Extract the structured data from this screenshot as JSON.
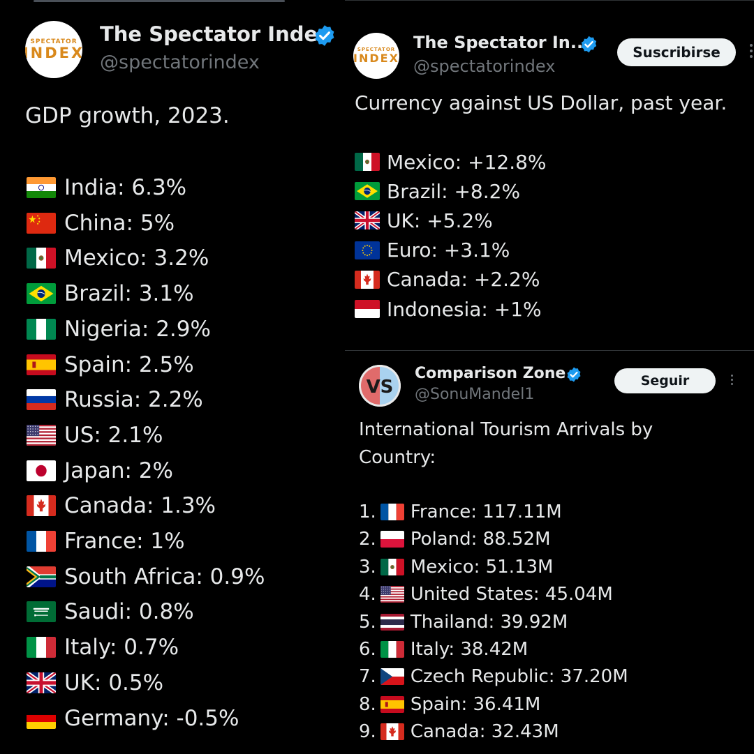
{
  "colors": {
    "background": "#000000",
    "text": "#e7e9ea",
    "muted": "#71767b",
    "verified": "#1d9bf0",
    "button_bg": "#eff3f4"
  },
  "left_post": {
    "author_name": "The Spectator Index",
    "author_handle": "@spectatorindex",
    "avatar_line1": "SPECTATOR",
    "avatar_line2": "INDEX",
    "title": "GDP growth, 2023.",
    "items": [
      {
        "flag": "india",
        "text": "India: 6.3%"
      },
      {
        "flag": "china",
        "text": "China: 5%"
      },
      {
        "flag": "mexico",
        "text": "Mexico: 3.2%"
      },
      {
        "flag": "brazil",
        "text": "Brazil: 3.1%"
      },
      {
        "flag": "nigeria",
        "text": "Nigeria: 2.9%"
      },
      {
        "flag": "spain",
        "text": "Spain: 2.5%"
      },
      {
        "flag": "russia",
        "text": "Russia: 2.2%"
      },
      {
        "flag": "usa",
        "text": "US: 2.1%"
      },
      {
        "flag": "japan",
        "text": "Japan: 2%"
      },
      {
        "flag": "canada",
        "text": "Canada: 1.3%"
      },
      {
        "flag": "france",
        "text": "France: 1%"
      },
      {
        "flag": "south-africa",
        "text": "South Africa: 0.9%"
      },
      {
        "flag": "saudi",
        "text": "Saudi: 0.8%"
      },
      {
        "flag": "italy",
        "text": "Italy: 0.7%"
      },
      {
        "flag": "uk",
        "text": "UK: 0.5%"
      },
      {
        "flag": "germany",
        "text": "Germany: -0.5%"
      }
    ]
  },
  "right_top_post": {
    "author_name": "The Spectator In...",
    "author_handle": "@spectatorindex",
    "avatar_line1": "SPECTATOR",
    "avatar_line2": "INDEX",
    "follow_label": "Suscribirse",
    "title": "Currency against US Dollar, past year.",
    "items": [
      {
        "flag": "mexico",
        "text": "Mexico: +12.8%"
      },
      {
        "flag": "brazil",
        "text": "Brazil: +8.2%"
      },
      {
        "flag": "uk",
        "text": "UK: +5.2%"
      },
      {
        "flag": "eu",
        "text": "Euro: +3.1%"
      },
      {
        "flag": "canada",
        "text": "Canada: +2.2%"
      },
      {
        "flag": "indonesia",
        "text": "Indonesia: +1%"
      }
    ]
  },
  "right_bottom_post": {
    "author_name": "Comparison Zone",
    "author_handle": "@SonuMandel1",
    "avatar_text": "VS",
    "follow_label": "Seguir",
    "title_line1": "International Tourism Arrivals by",
    "title_line2": "Country:",
    "items": [
      {
        "rank": "1.",
        "flag": "france",
        "text": "France: 117.11M"
      },
      {
        "rank": "2.",
        "flag": "poland",
        "text": "Poland: 88.52M"
      },
      {
        "rank": "3.",
        "flag": "mexico",
        "text": "Mexico: 51.13M"
      },
      {
        "rank": "4.",
        "flag": "usa",
        "text": "United States: 45.04M"
      },
      {
        "rank": "5.",
        "flag": "thailand",
        "text": "Thailand: 39.92M"
      },
      {
        "rank": "6.",
        "flag": "italy",
        "text": "Italy: 38.42M"
      },
      {
        "rank": "7.",
        "flag": "czech",
        "text": "Czech Republic: 37.20M"
      },
      {
        "rank": "8.",
        "flag": "spain",
        "text": "Spain: 36.41M"
      },
      {
        "rank": "9.",
        "flag": "canada",
        "text": "Canada: 32.43M"
      }
    ]
  }
}
